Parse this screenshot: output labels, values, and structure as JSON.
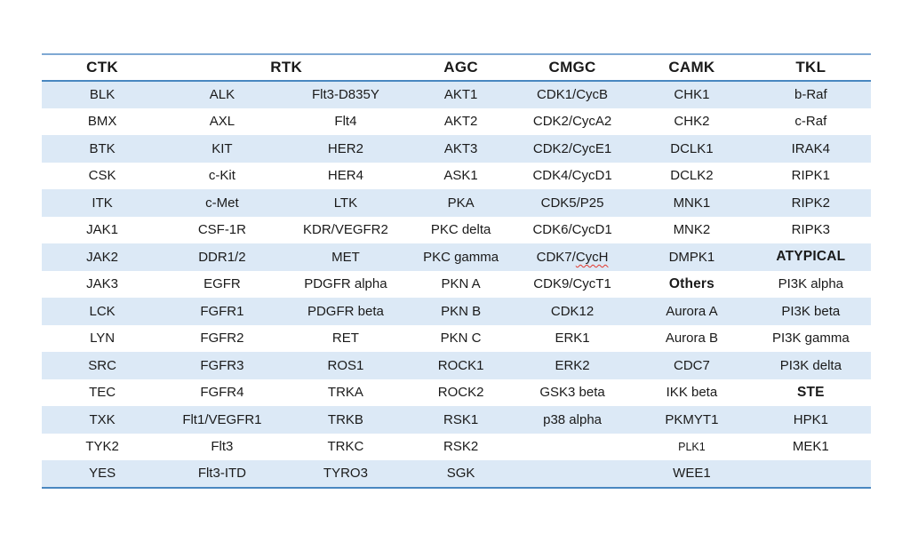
{
  "page": {
    "background": "#ffffff"
  },
  "table": {
    "colors": {
      "band": "#dce9f6",
      "top_border": "#7fa9d3",
      "strong_border": "#4987c0",
      "text": "#1a1a1a",
      "squiggle": "#e2372c"
    },
    "columns_pct": [
      14.6,
      14.3,
      15.5,
      12.3,
      14.6,
      14.2,
      14.5
    ],
    "headers": [
      {
        "label": "CTK",
        "span": 1
      },
      {
        "label": "RTK",
        "span": 2
      },
      {
        "label": "AGC",
        "span": 1
      },
      {
        "label": "CMGC",
        "span": 1
      },
      {
        "label": "CAMK",
        "span": 1
      },
      {
        "label": "TKL",
        "span": 1
      }
    ],
    "rows": [
      [
        "BLK",
        "ALK",
        "Flt3-D835Y",
        "AKT1",
        "CDK1/CycB",
        "CHK1",
        "b-Raf"
      ],
      [
        "BMX",
        "AXL",
        "Flt4",
        "AKT2",
        "CDK2/CycA2",
        "CHK2",
        "c-Raf"
      ],
      [
        "BTK",
        "KIT",
        "HER2",
        "AKT3",
        "CDK2/CycE1",
        "DCLK1",
        "IRAK4"
      ],
      [
        "CSK",
        "c-Kit",
        "HER4",
        "ASK1",
        "CDK4/CycD1",
        "DCLK2",
        "RIPK1"
      ],
      [
        "ITK",
        "c-Met",
        "LTK",
        "PKA",
        "CDK5/P25",
        "MNK1",
        "RIPK2"
      ],
      [
        "JAK1",
        "CSF-1R",
        "KDR/VEGFR2",
        "PKC delta",
        "CDK6/CycD1",
        "MNK2",
        "RIPK3"
      ],
      [
        "JAK2",
        "DDR1/2",
        "MET",
        "PKC gamma",
        {
          "text": "CDK7/CycH",
          "squiggle": "CycH"
        },
        "DMPK1",
        {
          "text": "ATYPICAL",
          "bold": true
        }
      ],
      [
        "JAK3",
        "EGFR",
        "PDGFR alpha",
        "PKN A",
        "CDK9/CycT1",
        {
          "text": "Others",
          "bold": true
        },
        "PI3K alpha"
      ],
      [
        "LCK",
        "FGFR1",
        "PDGFR beta",
        "PKN B",
        "CDK12",
        "Aurora A",
        "PI3K beta"
      ],
      [
        "LYN",
        "FGFR2",
        "RET",
        "PKN C",
        "ERK1",
        "Aurora B",
        "PI3K gamma"
      ],
      [
        "SRC",
        "FGFR3",
        "ROS1",
        "ROCK1",
        "ERK2",
        "CDC7",
        "PI3K delta"
      ],
      [
        "TEC",
        "FGFR4",
        "TRKA",
        "ROCK2",
        "GSK3 beta",
        "IKK beta",
        {
          "text": "STE",
          "bold": true
        }
      ],
      [
        "TXK",
        "Flt1/VEGFR1",
        "TRKB",
        "RSK1",
        "p38 alpha",
        "PKMYT1",
        "HPK1"
      ],
      [
        "TYK2",
        "Flt3",
        "TRKC",
        "RSK2",
        "",
        {
          "text": "PLK1",
          "small": true
        },
        "MEK1"
      ],
      [
        "YES",
        "Flt3-ITD",
        "TYRO3",
        "SGK",
        "",
        "WEE1",
        ""
      ]
    ]
  }
}
